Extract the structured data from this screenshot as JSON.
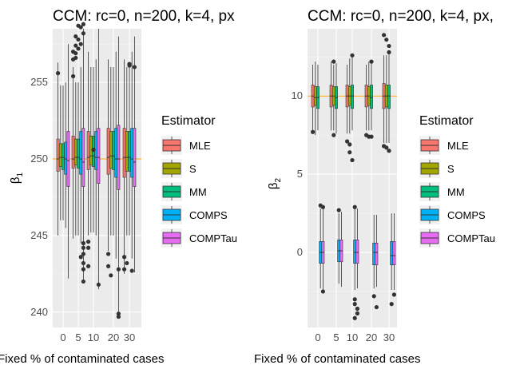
{
  "chart_data": [
    {
      "type": "boxplot",
      "title": "CCM: rc=0, n=200, k=4, px",
      "xlabel": "Fixed % of contaminated cases",
      "ylabel_main": "β",
      "ylabel_sub": "1",
      "categories": [
        "0",
        "5",
        "10",
        "20",
        "30"
      ],
      "ylim": [
        239,
        258.5
      ],
      "yticks": [
        "240",
        "245",
        "250",
        "255"
      ],
      "hline": 250,
      "grid": true,
      "legend_title": "Estimator",
      "legend_position": "right",
      "series_names": [
        "MLE",
        "S",
        "MM",
        "COMPS",
        "COMPTau"
      ],
      "colors": [
        "#F8766D",
        "#A3A500",
        "#00BF7D",
        "#00B0F6",
        "#E76BF3"
      ],
      "boxes": [
        [
          [
            245.0,
            249.2,
            250.0,
            251.3,
            256.3
          ],
          [
            246.0,
            249.5,
            250.1,
            251.0,
            254.8
          ],
          [
            246.0,
            249.3,
            250.1,
            251.0,
            254.8
          ],
          [
            245.5,
            249.0,
            250.0,
            251.1,
            255.0
          ],
          [
            242.2,
            248.2,
            249.9,
            251.8,
            257.5
          ]
        ],
        [
          [
            244.8,
            249.4,
            250.0,
            251.5,
            256.0
          ],
          [
            245.0,
            249.6,
            250.1,
            251.3,
            255.0
          ],
          [
            245.0,
            249.4,
            250.1,
            251.3,
            255.0
          ],
          [
            244.5,
            249.0,
            250.0,
            251.8,
            256.0
          ],
          [
            241.9,
            248.2,
            249.8,
            252.0,
            258.5
          ]
        ],
        [
          [
            245.0,
            249.3,
            250.1,
            251.8,
            257.0
          ],
          [
            245.2,
            249.6,
            250.2,
            251.5,
            256.0
          ],
          [
            245.2,
            249.5,
            250.2,
            251.5,
            256.0
          ],
          [
            245.0,
            249.3,
            250.1,
            251.8,
            256.5
          ],
          [
            241.5,
            248.4,
            250.1,
            252.0,
            258.5
          ]
        ],
        [
          [
            244.0,
            249.0,
            250.1,
            252.0,
            256.5
          ],
          [
            245.0,
            249.4,
            250.2,
            251.8,
            256.0
          ],
          [
            245.0,
            249.3,
            250.2,
            251.8,
            256.0
          ],
          [
            243.5,
            248.8,
            250.0,
            252.0,
            257.0
          ],
          [
            239.6,
            248.0,
            250.0,
            252.2,
            258.0
          ]
        ],
        [
          [
            242.5,
            248.8,
            250.1,
            252.0,
            256.5
          ],
          [
            245.0,
            249.2,
            250.1,
            251.8,
            256.0
          ],
          [
            245.0,
            249.2,
            250.1,
            251.8,
            256.0
          ],
          [
            243.5,
            248.8,
            250.0,
            252.0,
            257.0
          ],
          [
            242.6,
            248.2,
            249.8,
            252.0,
            258.0
          ]
        ]
      ],
      "outliers": [
        [
          0,
          0,
          255.6
        ],
        [
          1,
          4,
          242.0
        ],
        [
          1,
          4,
          244.2
        ],
        [
          1,
          4,
          243.8
        ],
        [
          1,
          4,
          243.2
        ],
        [
          1,
          4,
          242.8
        ],
        [
          1,
          4,
          244.5
        ],
        [
          1,
          3,
          243.6
        ],
        [
          1,
          0,
          255.4
        ],
        [
          1,
          1,
          256.6
        ],
        [
          1,
          1,
          257.4
        ],
        [
          1,
          2,
          257.8
        ],
        [
          1,
          1,
          256.9
        ],
        [
          1,
          0,
          256.5
        ],
        [
          1,
          2,
          257.2
        ],
        [
          1,
          3,
          257.5
        ],
        [
          1,
          4,
          258.2
        ],
        [
          1,
          2,
          258.7
        ],
        [
          1,
          3,
          258.6
        ],
        [
          1,
          0,
          257.0
        ],
        [
          1,
          1,
          258.0
        ],
        [
          1,
          4,
          258.8
        ],
        [
          2,
          0,
          243.0
        ],
        [
          2,
          0,
          244.2
        ],
        [
          2,
          4,
          241.8
        ],
        [
          2,
          0,
          244.6
        ],
        [
          2,
          2,
          250.6
        ],
        [
          3,
          0,
          243.0
        ],
        [
          3,
          0,
          243.8
        ],
        [
          3,
          4,
          239.7
        ],
        [
          3,
          4,
          239.9
        ],
        [
          3,
          1,
          242.4
        ],
        [
          3,
          4,
          242.8
        ],
        [
          4,
          0,
          242.8
        ],
        [
          4,
          0,
          243.6
        ],
        [
          4,
          3,
          242.7
        ],
        [
          4,
          1,
          243.2
        ],
        [
          4,
          2,
          256.2
        ],
        [
          4,
          4,
          256.0
        ],
        [
          4,
          2,
          256.1
        ]
      ]
    },
    {
      "type": "boxplot",
      "title": "CCM: rc=0, n=200, k=4, px,",
      "xlabel": "Fixed % of contaminated cases",
      "ylabel_main": "β",
      "ylabel_sub": "2",
      "categories": [
        "0",
        "5",
        "10",
        "20",
        "30"
      ],
      "ylim": [
        -4.8,
        14.3
      ],
      "yticks": [
        "0",
        "5",
        "10"
      ],
      "hline": 10,
      "grid": true,
      "legend_title": "Estimator",
      "legend_position": "right",
      "series_names": [
        "MLE",
        "S",
        "MM",
        "COMPS",
        "COMPTau"
      ],
      "colors": [
        "#F8766D",
        "#A3A500",
        "#00BF7D",
        "#00B0F6",
        "#E76BF3"
      ],
      "boxes": [
        [
          [
            7.8,
            9.3,
            10.0,
            10.7,
            12.0
          ],
          [
            7.5,
            9.4,
            9.9,
            10.6,
            12.2
          ],
          [
            7.8,
            9.2,
            9.9,
            10.6,
            12.0
          ],
          [
            -2.3,
            -0.7,
            0.0,
            0.7,
            2.8
          ],
          [
            -2.4,
            -0.7,
            0.0,
            0.7,
            2.9
          ]
        ],
        [
          [
            7.8,
            9.3,
            10.0,
            10.7,
            12.2
          ],
          [
            7.8,
            9.4,
            10.0,
            10.6,
            12.0
          ],
          [
            7.6,
            9.2,
            9.9,
            10.6,
            12.1
          ],
          [
            -2.0,
            -0.6,
            0.1,
            0.8,
            2.5
          ],
          [
            -2.2,
            -0.6,
            0.1,
            0.8,
            2.6
          ]
        ],
        [
          [
            7.6,
            9.3,
            10.0,
            10.7,
            12.0
          ],
          [
            7.6,
            9.4,
            10.0,
            10.6,
            12.4
          ],
          [
            7.8,
            9.2,
            10.0,
            10.7,
            12.5
          ],
          [
            -2.4,
            -0.7,
            0.0,
            0.8,
            2.8
          ],
          [
            -2.3,
            -0.7,
            0.0,
            0.8,
            2.8
          ]
        ],
        [
          [
            7.8,
            9.3,
            10.0,
            10.7,
            12.0
          ],
          [
            7.8,
            9.4,
            10.0,
            10.6,
            12.2
          ],
          [
            7.8,
            9.2,
            9.9,
            10.7,
            12.3
          ],
          [
            -2.3,
            -0.8,
            0.0,
            0.6,
            2.4
          ],
          [
            -2.2,
            -0.8,
            0.0,
            0.6,
            2.4
          ]
        ],
        [
          [
            7.0,
            9.2,
            10.0,
            10.8,
            12.6
          ],
          [
            7.0,
            9.3,
            10.0,
            10.7,
            12.6
          ],
          [
            7.0,
            9.2,
            10.0,
            10.7,
            12.8
          ],
          [
            -2.4,
            -0.8,
            -0.2,
            0.7,
            2.5
          ],
          [
            -2.4,
            -0.8,
            -0.2,
            0.7,
            2.5
          ]
        ]
      ],
      "outliers": [
        [
          0,
          0,
          7.7
        ],
        [
          0,
          3,
          3.0
        ],
        [
          0,
          4,
          2.9
        ],
        [
          0,
          4,
          -2.5
        ],
        [
          1,
          1,
          12.2
        ],
        [
          1,
          1,
          7.5
        ],
        [
          1,
          3,
          2.7
        ],
        [
          2,
          0,
          7.1
        ],
        [
          2,
          1,
          6.9
        ],
        [
          2,
          1,
          6.4
        ],
        [
          2,
          2,
          5.9
        ],
        [
          2,
          2,
          12.6
        ],
        [
          2,
          3,
          2.9
        ],
        [
          2,
          3,
          -3.0
        ],
        [
          2,
          3,
          -3.3
        ],
        [
          2,
          4,
          -3.6
        ],
        [
          2,
          4,
          -3.9
        ],
        [
          2,
          3,
          -4.2
        ],
        [
          3,
          0,
          7.5
        ],
        [
          3,
          1,
          7.4
        ],
        [
          3,
          2,
          7.4
        ],
        [
          3,
          3,
          -2.8
        ],
        [
          3,
          4,
          -3.5
        ],
        [
          3,
          2,
          12.2
        ],
        [
          4,
          0,
          6.8
        ],
        [
          4,
          1,
          6.7
        ],
        [
          4,
          2,
          6.5
        ],
        [
          4,
          0,
          13.9
        ],
        [
          4,
          1,
          13.6
        ],
        [
          4,
          2,
          13.2
        ],
        [
          4,
          2,
          12.8
        ],
        [
          4,
          3,
          -3.3
        ],
        [
          4,
          4,
          -2.7
        ]
      ]
    }
  ]
}
